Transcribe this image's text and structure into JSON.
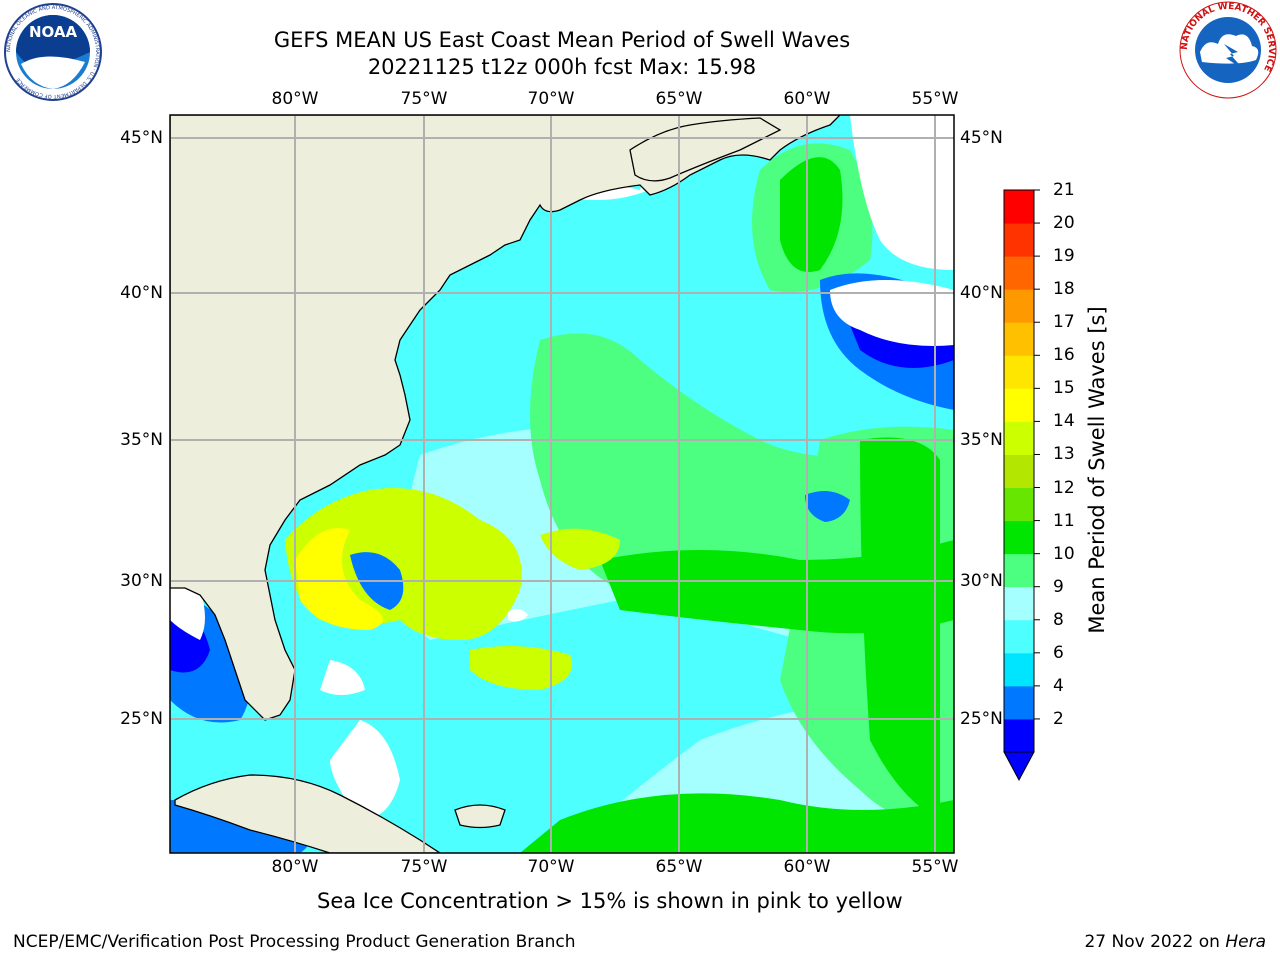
{
  "title": {
    "line1": "GEFS MEAN US East Coast Mean Period of Swell Waves",
    "line2": "20221125 t12z 000h fcst   Max: 15.98"
  },
  "axes": {
    "lon_labels": [
      "80°W",
      "75°W",
      "70°W",
      "65°W",
      "60°W",
      "55°W"
    ],
    "lat_labels": [
      "45°N",
      "40°N",
      "35°N",
      "30°N",
      "25°N"
    ],
    "lon_range": [
      -85,
      -54.5
    ],
    "lat_range": [
      20.5,
      46
    ],
    "grid": true
  },
  "colorbar": {
    "label": "Mean Period of Swell Waves [s]",
    "ticks": [
      "21",
      "20",
      "19",
      "18",
      "17",
      "16",
      "15",
      "14",
      "13",
      "12",
      "11",
      "10",
      "9",
      "8",
      "6",
      "4",
      "2"
    ],
    "colors": [
      "#0000ff",
      "#0078ff",
      "#00e5ff",
      "#4dffff",
      "#a6ffff",
      "#4dff80",
      "#00e600",
      "#66e600",
      "#b3e600",
      "#ccff00",
      "#ffff00",
      "#ffe600",
      "#ffc000",
      "#ff9900",
      "#ff6600",
      "#ff3300",
      "#ff0000"
    ]
  },
  "footnote": "Sea Ice Concentration > 15% is shown in pink to yellow",
  "credit": "NCEP/EMC/Verification Post Processing Product Generation Branch",
  "run_date": "27 Nov 2022 on ",
  "run_host": "Hera",
  "logos": {
    "noaa": {
      "text": "NOAA",
      "ring": "NATIONAL OCEANIC AND ATMOSPHERIC ADMINISTRATION · U.S. DEPARTMENT OF COMMERCE"
    },
    "nws": {
      "ring": "NATIONAL WEATHER SERVICE"
    }
  },
  "colors": {
    "land": "#eeeedc",
    "ocean_base": "#4dffff",
    "grid": "#b0b0b0"
  }
}
